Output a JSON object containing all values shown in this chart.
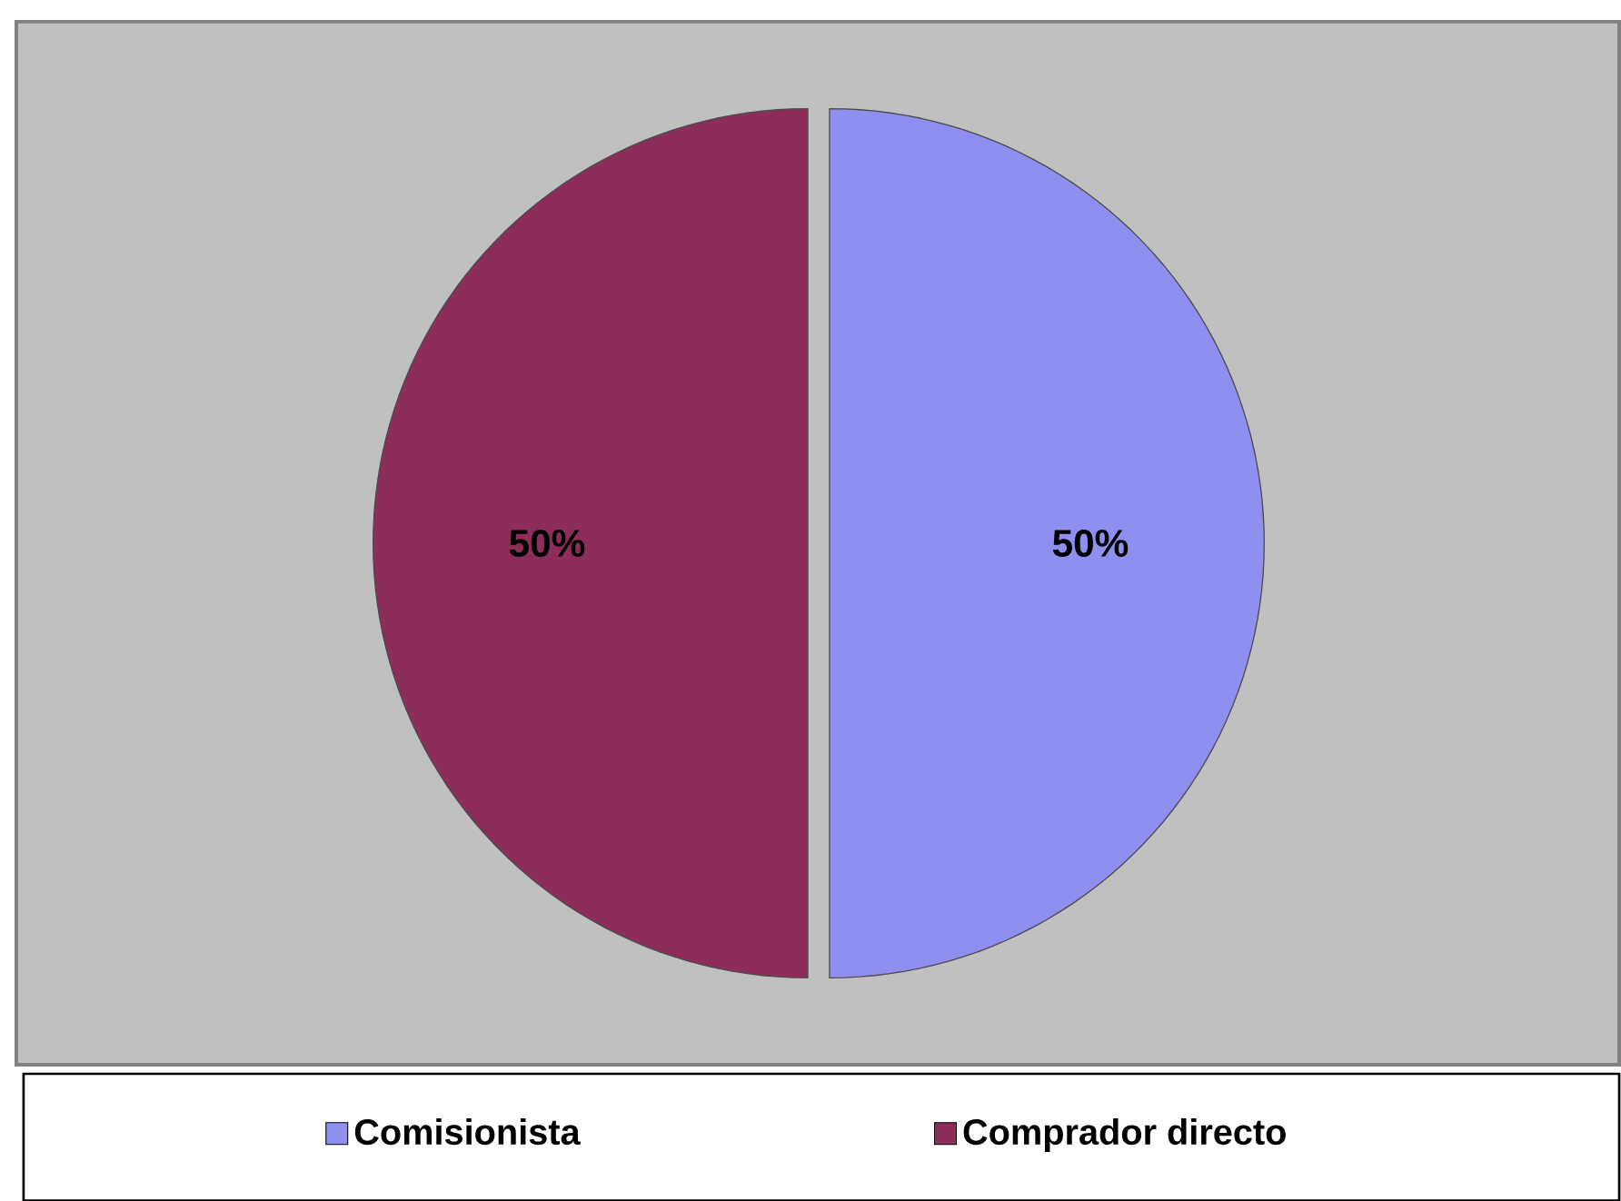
{
  "chart_data": {
    "type": "pie",
    "categories": [
      "Comisionista",
      "Comprador directo"
    ],
    "values": [
      50,
      50
    ],
    "colors": [
      "#8f8fef",
      "#8c2d5a"
    ],
    "value_labels": [
      "50%",
      "50%"
    ],
    "legend": "bottom"
  }
}
